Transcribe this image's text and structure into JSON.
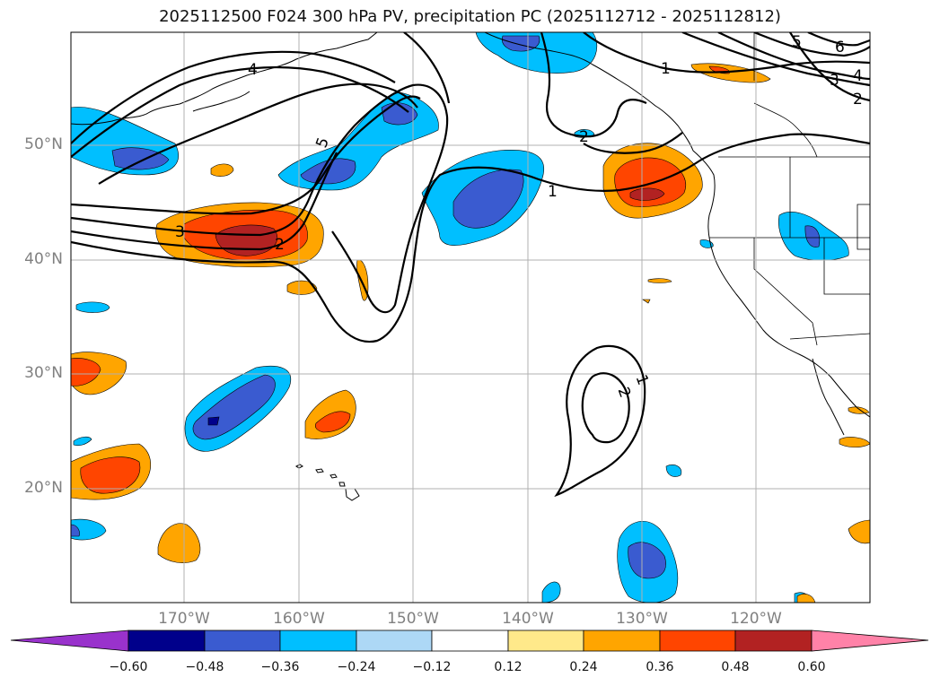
{
  "title": "2025112500 F024 300 hPa PV, precipitation PC (2025112712 - 2025112812)",
  "colors": {
    "neg_060": "#9932cc",
    "neg_048": "#00008b",
    "neg_036": "#3a5bd0",
    "neg_024": "#00bfff",
    "neg_012": "#add8f6",
    "zero": "#ffffff",
    "pos_012": "#ffe98a",
    "pos_024": "#ffa500",
    "pos_036": "#ff4500",
    "pos_048": "#b22222",
    "pos_060": "#ff82a8",
    "grid": "#b0b0b0",
    "contour": "#000000"
  },
  "lat_labels": [
    "50°N",
    "40°N",
    "30°N",
    "20°N"
  ],
  "lon_labels": [
    "170°W",
    "160°W",
    "150°W",
    "140°W",
    "130°W",
    "120°W"
  ],
  "contour_labels": {
    "c4_top": "4",
    "c5_west": "5",
    "c3_west": "3",
    "c2_west": "2",
    "c1_center": "1",
    "c1_north": "1",
    "c2_north": "2",
    "c5_ne": "5",
    "c6_ne": "6",
    "c4_ne": "4",
    "c3_ne": "3",
    "c2_ne": "2",
    "c1_south": "1",
    "c2_south": "2"
  },
  "colorbar": {
    "ticks": [
      "−0.60",
      "−0.48",
      "−0.36",
      "−0.24",
      "−0.12",
      "0.12",
      "0.24",
      "0.36",
      "0.48",
      "0.60"
    ]
  }
}
